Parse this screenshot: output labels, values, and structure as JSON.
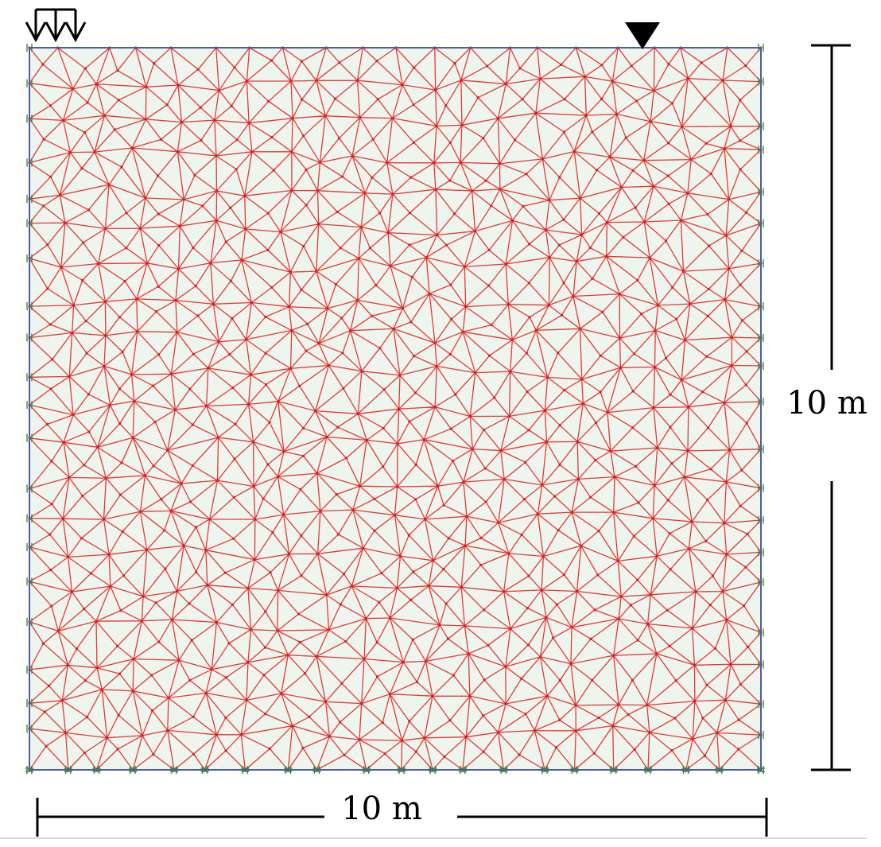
{
  "dimensions": {
    "height_label": "10 m",
    "width_label": "10 m"
  }
}
